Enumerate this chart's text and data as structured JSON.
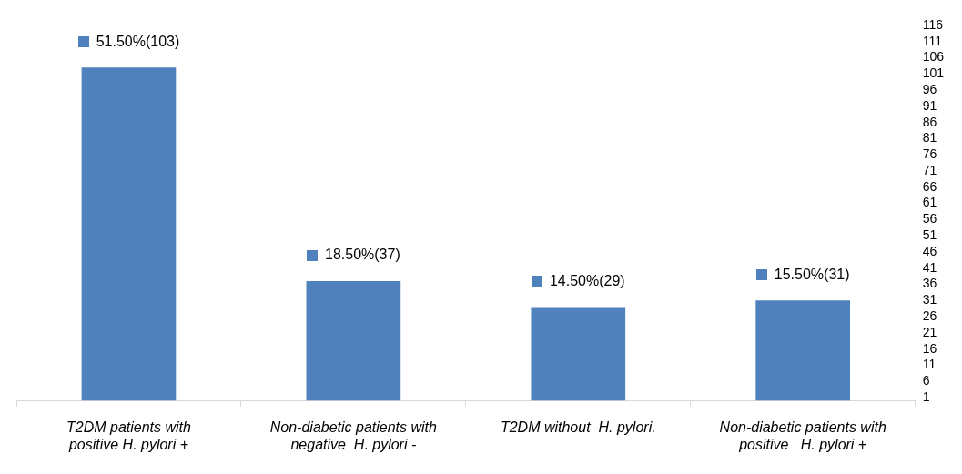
{
  "chart_data": {
    "type": "bar",
    "categories": [
      "T2DM patients with positive H. pylori +",
      "Non-diabetic patients with negative  H. pylori -",
      "T2DM without  H. pylori.",
      "Non-diabetic patients with positive   H. pylori +"
    ],
    "values": [
      103,
      37,
      29,
      31
    ],
    "color": "#4f81bd",
    "value_labels": [
      "51.50%(103)",
      "18.50%(37)",
      "14.50%(29)",
      "15.50%(31)"
    ],
    "ylim": [
      0,
      116
    ],
    "yticks": [
      1,
      6,
      11,
      16,
      21,
      26,
      31,
      36,
      41,
      46,
      51,
      56,
      61,
      66,
      71,
      76,
      81,
      86,
      91,
      96,
      101,
      106,
      111,
      116
    ],
    "grid": false,
    "legend": false
  }
}
